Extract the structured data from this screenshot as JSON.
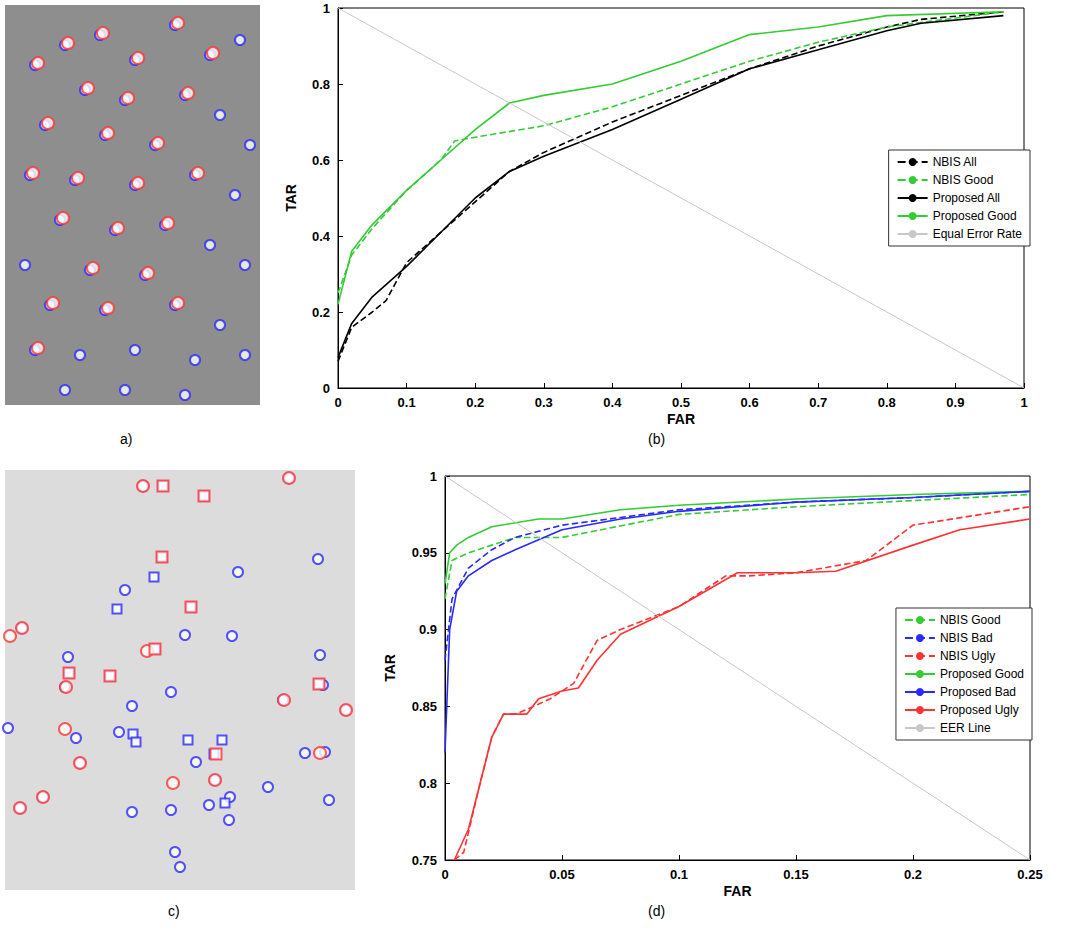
{
  "chart_data": [
    {
      "type": "scatter",
      "title": "a)",
      "xlim": [
        0,
        255
      ],
      "ylim": [
        0,
        400
      ],
      "tick_labels": false,
      "grid": false,
      "series": [
        {
          "color": "#2a2aff",
          "marker": "circle",
          "x": [
            30,
            60,
            95,
            130,
            170,
            205,
            235,
            80,
            120,
            180,
            215,
            40,
            100,
            150,
            245,
            25,
            70,
            130,
            190,
            230,
            55,
            110,
            160,
            205,
            20,
            85,
            140,
            240,
            45,
            100,
            170,
            215,
            30,
            75,
            130,
            190,
            240,
            60,
            120,
            180
          ],
          "values": [
            340,
            360,
            370,
            345,
            380,
            350,
            365,
            315,
            305,
            310,
            290,
            280,
            270,
            260,
            260,
            230,
            225,
            220,
            230,
            210,
            185,
            175,
            180,
            160,
            140,
            135,
            130,
            140,
            100,
            95,
            100,
            80,
            55,
            50,
            55,
            45,
            50,
            15,
            15,
            10
          ]
        },
        {
          "color": "#ff3333",
          "marker": "circle",
          "x": [
            33,
            63,
            98,
            133,
            173,
            208,
            83,
            123,
            183,
            43,
            103,
            153,
            28,
            73,
            133,
            193,
            58,
            113,
            163,
            88,
            143,
            48,
            103,
            173,
            33
          ],
          "values": [
            342,
            362,
            372,
            347,
            382,
            352,
            317,
            307,
            312,
            282,
            272,
            262,
            232,
            227,
            222,
            232,
            187,
            177,
            182,
            137,
            132,
            102,
            97,
            102,
            57
          ]
        }
      ]
    },
    {
      "type": "line",
      "title": "(b)",
      "xlabel": "FAR",
      "ylabel": "TAR",
      "xlim": [
        0,
        1
      ],
      "ylim": [
        0,
        1
      ],
      "xticks": [
        0,
        0.1,
        0.2,
        0.3,
        0.4,
        0.5,
        0.6,
        0.7,
        0.8,
        0.9,
        1
      ],
      "yticks": [
        0,
        0.2,
        0.4,
        0.6,
        0.8,
        1
      ],
      "grid": false,
      "legend": "right",
      "series": [
        {
          "name": "NBIS All",
          "color": "#000000",
          "line_style": "dashed",
          "x": [
            0,
            0.02,
            0.05,
            0.07,
            0.1,
            0.15,
            0.2,
            0.25,
            0.3,
            0.4,
            0.5,
            0.6,
            0.7,
            0.8,
            0.85,
            0.97
          ],
          "values": [
            0.07,
            0.16,
            0.2,
            0.23,
            0.33,
            0.41,
            0.49,
            0.57,
            0.62,
            0.7,
            0.77,
            0.84,
            0.9,
            0.95,
            0.97,
            0.99
          ]
        },
        {
          "name": "NBIS Good",
          "color": "#33cc33",
          "line_style": "dashed",
          "x": [
            0,
            0.02,
            0.05,
            0.1,
            0.15,
            0.17,
            0.2,
            0.3,
            0.4,
            0.5,
            0.6,
            0.7,
            0.8,
            0.97
          ],
          "values": [
            0.25,
            0.35,
            0.42,
            0.52,
            0.6,
            0.65,
            0.66,
            0.69,
            0.74,
            0.8,
            0.86,
            0.91,
            0.95,
            0.99
          ]
        },
        {
          "name": "Proposed All",
          "color": "#000000",
          "line_style": "solid",
          "x": [
            0,
            0.02,
            0.05,
            0.1,
            0.15,
            0.2,
            0.25,
            0.3,
            0.4,
            0.5,
            0.6,
            0.7,
            0.8,
            0.85,
            0.97
          ],
          "values": [
            0.08,
            0.17,
            0.24,
            0.32,
            0.41,
            0.5,
            0.57,
            0.61,
            0.68,
            0.76,
            0.84,
            0.89,
            0.94,
            0.96,
            0.98
          ]
        },
        {
          "name": "Proposed Good",
          "color": "#33cc33",
          "line_style": "solid",
          "x": [
            0,
            0.02,
            0.05,
            0.1,
            0.15,
            0.2,
            0.25,
            0.3,
            0.4,
            0.5,
            0.6,
            0.7,
            0.8,
            0.97
          ],
          "values": [
            0.22,
            0.36,
            0.43,
            0.52,
            0.6,
            0.68,
            0.75,
            0.77,
            0.8,
            0.86,
            0.93,
            0.95,
            0.98,
            0.99
          ]
        },
        {
          "name": "Equal Error Rate",
          "color": "#c8c8c8",
          "line_style": "solid",
          "x": [
            0,
            1
          ],
          "values": [
            1,
            0
          ]
        }
      ]
    },
    {
      "type": "scatter",
      "title": "c)",
      "xlim": [
        0,
        350
      ],
      "ylim": [
        0,
        420
      ],
      "tick_labels": false,
      "grid": false,
      "series": [
        {
          "color": "#2a2aff",
          "marker": "circle",
          "x": [
            138,
            284,
            313,
            233,
            120,
            180,
            227,
            17,
            63,
            315,
            60,
            166,
            127,
            114,
            71,
            278,
            318,
            341,
            300,
            191,
            210,
            204,
            225,
            224,
            166,
            127,
            75,
            38,
            15,
            320,
            263,
            324,
            170,
            175,
            3
          ],
          "values": [
            404,
            412,
            331,
            318,
            300,
            255,
            254,
            262,
            233,
            235,
            203,
            198,
            184,
            158,
            152,
            190,
            205,
            180,
            137,
            128,
            110,
            85,
            93,
            70,
            80,
            78,
            127,
            93,
            82,
            138,
            103,
            90,
            38,
            23,
            162
          ]
        },
        {
          "color": "#2a2aff",
          "marker": "square",
          "x": [
            158,
            199,
            157,
            149,
            112,
            186,
            150,
            64,
            314,
            105,
            217,
            209,
            128,
            131,
            183,
            220
          ],
          "values": [
            404,
            394,
            333,
            313,
            281,
            283,
            241,
            217,
            206,
            214,
            150,
            136,
            156,
            148,
            150,
            87
          ]
        },
        {
          "color": "#ff3333",
          "marker": "circle",
          "x": [
            138,
            284,
            142,
            61,
            60,
            75,
            210,
            15,
            38,
            168,
            279,
            315,
            341,
            5,
            17
          ],
          "values": [
            404,
            412,
            239,
            203,
            161,
            127,
            110,
            82,
            93,
            107,
            190,
            137,
            180,
            254,
            262
          ]
        },
        {
          "color": "#ff3333",
          "marker": "square",
          "x": [
            158,
            199,
            157,
            186,
            150,
            64,
            314,
            105,
            211
          ],
          "values": [
            404,
            394,
            333,
            283,
            241,
            217,
            206,
            214,
            136
          ]
        }
      ]
    },
    {
      "type": "line",
      "title": "(d)",
      "xlabel": "FAR",
      "ylabel": "TAR",
      "xlim": [
        0,
        0.25
      ],
      "ylim": [
        0.75,
        1
      ],
      "xticks": [
        0,
        0.05,
        0.1,
        0.15,
        0.2,
        0.25
      ],
      "yticks": [
        0.75,
        0.8,
        0.85,
        0.9,
        0.95,
        1
      ],
      "grid": false,
      "legend": "right",
      "series": [
        {
          "name": "NBIS Good",
          "color": "#33cc33",
          "line_style": "dashed",
          "x": [
            0,
            0.003,
            0.01,
            0.02,
            0.03,
            0.05,
            0.06,
            0.1,
            0.15,
            0.2,
            0.25
          ],
          "values": [
            0.92,
            0.945,
            0.95,
            0.955,
            0.96,
            0.96,
            0.963,
            0.975,
            0.98,
            0.984,
            0.988
          ]
        },
        {
          "name": "NBIS Bad",
          "color": "#2a2aff",
          "line_style": "dashed",
          "x": [
            0,
            0.003,
            0.01,
            0.02,
            0.03,
            0.05,
            0.075,
            0.1,
            0.15,
            0.2,
            0.25
          ],
          "values": [
            0.88,
            0.92,
            0.94,
            0.952,
            0.96,
            0.968,
            0.973,
            0.978,
            0.983,
            0.986,
            0.99
          ]
        },
        {
          "name": "NBIS Ugly",
          "color": "#ff3333",
          "line_style": "dashed",
          "x": [
            0.004,
            0.008,
            0.015,
            0.02,
            0.025,
            0.03,
            0.035,
            0.045,
            0.055,
            0.065,
            0.075,
            0.1,
            0.12,
            0.13,
            0.15,
            0.18,
            0.2,
            0.25
          ],
          "values": [
            0.75,
            0.755,
            0.8,
            0.83,
            0.845,
            0.845,
            0.848,
            0.855,
            0.865,
            0.893,
            0.9,
            0.915,
            0.935,
            0.935,
            0.937,
            0.945,
            0.968,
            0.98
          ]
        },
        {
          "name": "Proposed Good",
          "color": "#33cc33",
          "line_style": "solid",
          "x": [
            0,
            0.002,
            0.005,
            0.01,
            0.02,
            0.04,
            0.05,
            0.075,
            0.1,
            0.15,
            0.2,
            0.25
          ],
          "values": [
            0.93,
            0.95,
            0.955,
            0.96,
            0.967,
            0.972,
            0.972,
            0.978,
            0.981,
            0.985,
            0.988,
            0.99
          ]
        },
        {
          "name": "Proposed Bad",
          "color": "#2a2aff",
          "line_style": "solid",
          "x": [
            0,
            0.002,
            0.005,
            0.01,
            0.02,
            0.03,
            0.05,
            0.075,
            0.1,
            0.15,
            0.2,
            0.25
          ],
          "values": [
            0.82,
            0.9,
            0.925,
            0.935,
            0.945,
            0.952,
            0.965,
            0.972,
            0.977,
            0.983,
            0.986,
            0.99
          ]
        },
        {
          "name": "Proposed Ugly",
          "color": "#ff3333",
          "line_style": "solid",
          "x": [
            0.004,
            0.01,
            0.015,
            0.02,
            0.025,
            0.035,
            0.04,
            0.05,
            0.057,
            0.065,
            0.075,
            0.1,
            0.125,
            0.15,
            0.167,
            0.2,
            0.22,
            0.25
          ],
          "values": [
            0.75,
            0.77,
            0.8,
            0.83,
            0.845,
            0.845,
            0.855,
            0.86,
            0.862,
            0.88,
            0.897,
            0.915,
            0.937,
            0.937,
            0.938,
            0.955,
            0.965,
            0.972
          ]
        },
        {
          "name": "EER Line",
          "color": "#c8c8c8",
          "line_style": "solid",
          "x": [
            0,
            0.25
          ],
          "values": [
            1,
            0.75
          ]
        }
      ]
    }
  ]
}
